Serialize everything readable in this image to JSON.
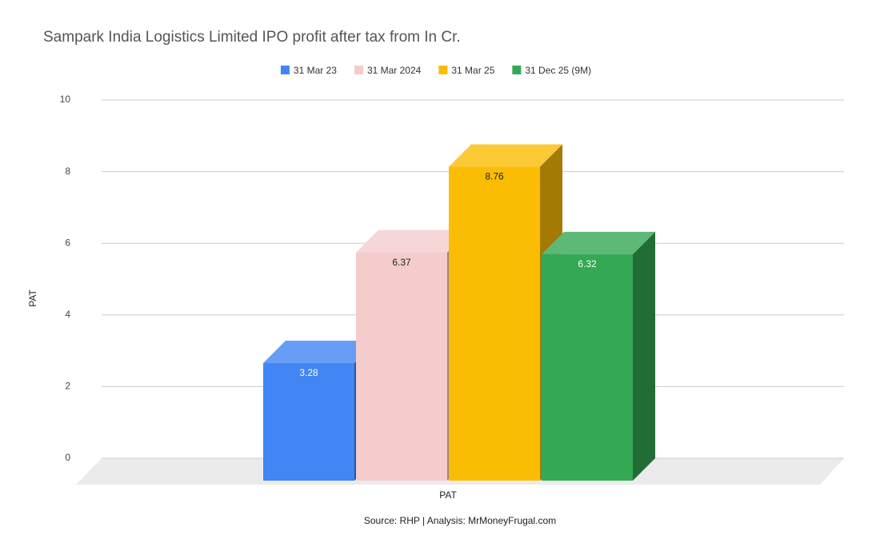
{
  "chart_data": {
    "type": "bar3d",
    "title": "Sampark India Logistics Limited IPO profit after tax from In Cr.",
    "categories": [
      "PAT"
    ],
    "x_label": "PAT",
    "y_label": "PAT",
    "series": [
      {
        "name": "31 Mar 23",
        "color": "#4285f4",
        "values": [
          3.28
        ]
      },
      {
        "name": "31 Mar 2024",
        "color": "#f4cccc",
        "values": [
          6.37
        ]
      },
      {
        "name": "31 Mar 25",
        "color": "#fbbc04",
        "values": [
          8.76
        ]
      },
      {
        "name": "31 Dec 25 (9M)",
        "color": "#34a853",
        "values": [
          6.32
        ]
      }
    ],
    "ylim": [
      0,
      10
    ],
    "yticks": [
      0,
      2,
      4,
      6,
      8,
      10
    ],
    "grid": true,
    "legend": "top",
    "source": "Source: RHP | Analysis: MrMoneyFrugal.com"
  }
}
